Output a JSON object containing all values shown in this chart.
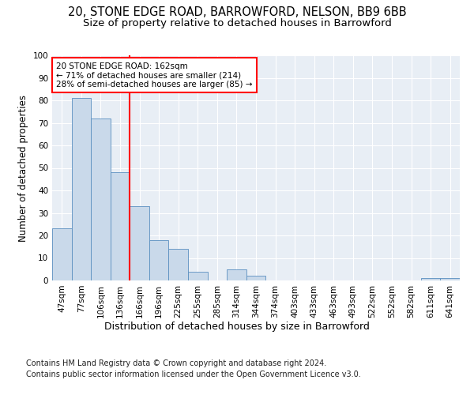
{
  "title1": "20, STONE EDGE ROAD, BARROWFORD, NELSON, BB9 6BB",
  "title2": "Size of property relative to detached houses in Barrowford",
  "xlabel": "Distribution of detached houses by size in Barrowford",
  "ylabel": "Number of detached properties",
  "categories": [
    "47sqm",
    "77sqm",
    "106sqm",
    "136sqm",
    "166sqm",
    "196sqm",
    "225sqm",
    "255sqm",
    "285sqm",
    "314sqm",
    "344sqm",
    "374sqm",
    "403sqm",
    "433sqm",
    "463sqm",
    "493sqm",
    "522sqm",
    "552sqm",
    "582sqm",
    "611sqm",
    "641sqm"
  ],
  "values": [
    23,
    81,
    72,
    48,
    33,
    18,
    14,
    4,
    0,
    5,
    2,
    0,
    0,
    0,
    0,
    0,
    0,
    0,
    0,
    1,
    1
  ],
  "bar_color": "#c9d9ea",
  "bar_edge_color": "#5a8fc0",
  "vline_x_index": 3.5,
  "vline_color": "red",
  "annotation_text": "20 STONE EDGE ROAD: 162sqm\n← 71% of detached houses are smaller (214)\n28% of semi-detached houses are larger (85) →",
  "annotation_box_color": "white",
  "annotation_box_edge": "red",
  "footnote1": "Contains HM Land Registry data © Crown copyright and database right 2024.",
  "footnote2": "Contains public sector information licensed under the Open Government Licence v3.0.",
  "ylim": [
    0,
    100
  ],
  "yticks": [
    0,
    10,
    20,
    30,
    40,
    50,
    60,
    70,
    80,
    90,
    100
  ],
  "background_color": "#e8eef5",
  "fig_background": "#ffffff",
  "title1_fontsize": 10.5,
  "title2_fontsize": 9.5,
  "xlabel_fontsize": 9,
  "ylabel_fontsize": 8.5,
  "tick_fontsize": 7.5,
  "annotation_fontsize": 7.5,
  "footnote_fontsize": 7
}
